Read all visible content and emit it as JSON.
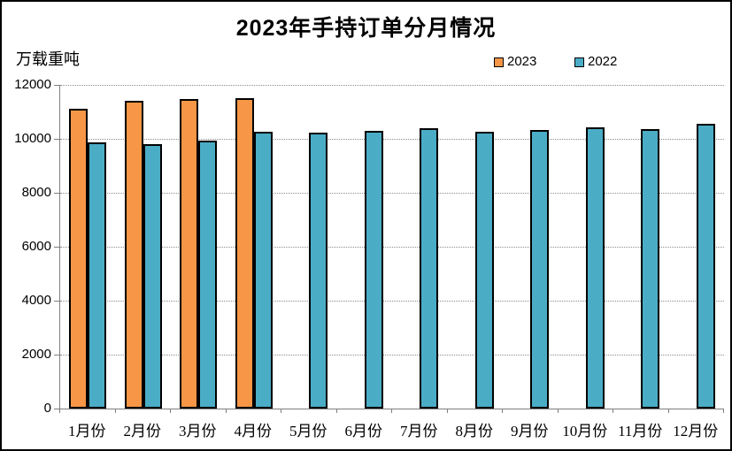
{
  "chart_data": {
    "type": "bar",
    "title": "2023年手持订单分月情况",
    "unit_label": "万载重吨",
    "categories": [
      "1月份",
      "2月份",
      "3月份",
      "4月份",
      "5月份",
      "6月份",
      "7月份",
      "8月份",
      "9月份",
      "10月份",
      "11月份",
      "12月份"
    ],
    "series": [
      {
        "name": "2023",
        "color": "#F79646",
        "values": [
          11110,
          11400,
          11460,
          11520,
          null,
          null,
          null,
          null,
          null,
          null,
          null,
          null
        ]
      },
      {
        "name": "2022",
        "color": "#4BACC6",
        "values": [
          9870,
          9790,
          9930,
          10250,
          10230,
          10300,
          10380,
          10270,
          10330,
          10440,
          10350,
          10550
        ]
      }
    ],
    "ylabel": "",
    "xlabel": "",
    "ylim": [
      0,
      12000
    ],
    "yticks": [
      0,
      2000,
      4000,
      6000,
      8000,
      10000,
      12000
    ],
    "grid": "horizontal-dotted",
    "legend_position": "top-right",
    "bar_border_color": "#000000",
    "axis_color": "#7f7f7f",
    "background_color": "#ffffff"
  }
}
